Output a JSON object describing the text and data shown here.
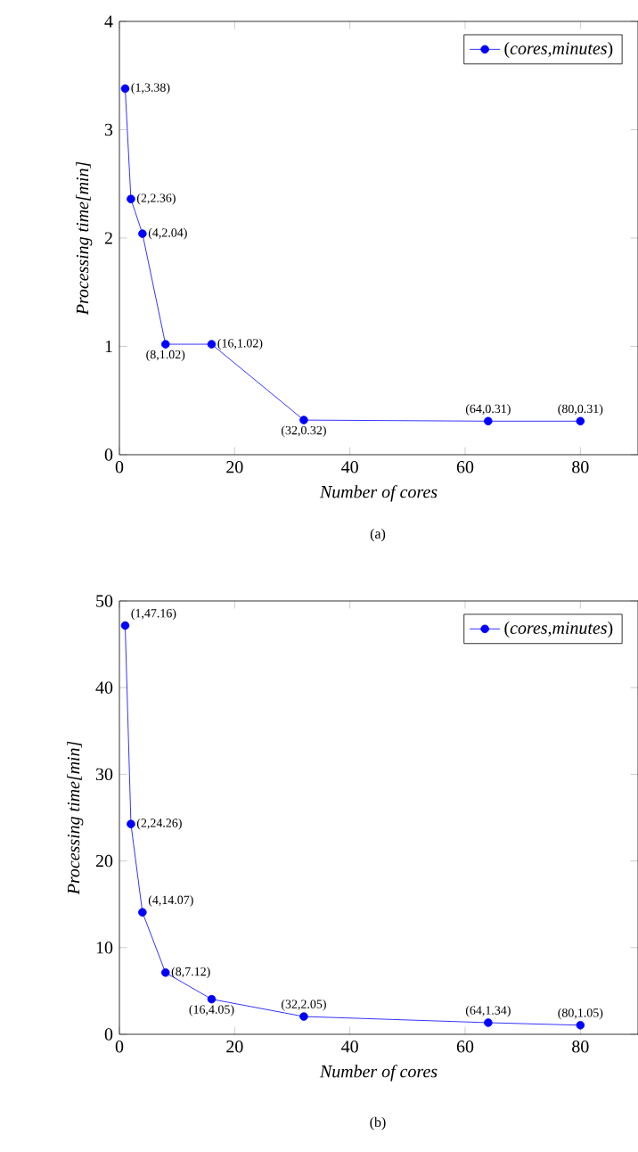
{
  "chart_data": [
    {
      "type": "line",
      "xlabel": "Number of cores",
      "ylabel": "Processing time[min]",
      "x": [
        1,
        2,
        4,
        8,
        16,
        32,
        64,
        80
      ],
      "series": [
        {
          "name": "(*cores*,*minutes*)",
          "color": "#0000ff",
          "values": [
            3.38,
            2.36,
            2.04,
            1.02,
            1.02,
            0.32,
            0.31,
            0.31
          ]
        }
      ],
      "xlim": [
        0,
        90
      ],
      "xticks": [
        0,
        20,
        40,
        60,
        80
      ],
      "ylim": [
        0,
        4
      ],
      "yticks": [
        0,
        1,
        2,
        3,
        4
      ],
      "legend": "top right",
      "marker": "circle",
      "line_style": "solid",
      "grid": false,
      "annotations": [
        {
          "text": "(1,3.38)",
          "x": 1,
          "y": 3.38
        },
        {
          "text": "(2,2.36)",
          "x": 2,
          "y": 2.36
        },
        {
          "text": "(4,2.04)",
          "x": 4,
          "y": 2.04
        },
        {
          "text": "(8,1.02)",
          "x": 8,
          "y": 1.02
        },
        {
          "text": "(16,1.02)",
          "x": 16,
          "y": 1.02
        },
        {
          "text": "(32,0.32)",
          "x": 32,
          "y": 0.32
        },
        {
          "text": "(64,0.31)",
          "x": 64,
          "y": 0.31
        },
        {
          "text": "(80,0.31)",
          "x": 80,
          "y": 0.31
        },
        "(a)"
      ]
    },
    {
      "type": "line",
      "xlabel": "Number of cores",
      "ylabel": "Processing time[min]",
      "x": [
        1,
        2,
        4,
        8,
        16,
        32,
        64,
        80
      ],
      "series": [
        {
          "name": "(*cores*,*minutes*)",
          "color": "#0000ff",
          "values": [
            47.16,
            24.26,
            14.07,
            7.12,
            4.05,
            2.05,
            1.34,
            1.05
          ]
        }
      ],
      "xlim": [
        0,
        90
      ],
      "xticks": [
        0,
        20,
        40,
        60,
        80
      ],
      "ylim": [
        0,
        50
      ],
      "yticks": [
        0,
        10,
        20,
        30,
        40,
        50
      ],
      "legend": "top right",
      "marker": "circle",
      "line_style": "solid",
      "grid": false,
      "annotations": [
        {
          "text": "(1,47.16)",
          "x": 1,
          "y": 47.16
        },
        {
          "text": "(2,24.26)",
          "x": 2,
          "y": 24.26
        },
        {
          "text": "(4,14.07)",
          "x": 4,
          "y": 14.07
        },
        {
          "text": "(8,7.12)",
          "x": 8,
          "y": 7.12
        },
        {
          "text": "(16,4.05)",
          "x": 16,
          "y": 4.05
        },
        {
          "text": "(32,2.05)",
          "x": 32,
          "y": 2.05
        },
        {
          "text": "(64,1.34)",
          "x": 64,
          "y": 1.34
        },
        {
          "text": "(80,1.05)",
          "x": 80,
          "y": 1.05
        },
        "(b)"
      ]
    }
  ]
}
